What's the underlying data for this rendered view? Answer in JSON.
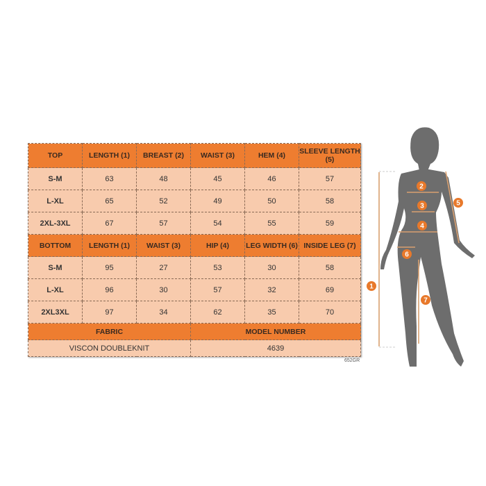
{
  "top": {
    "headers": [
      "TOP",
      "LENGTH (1)",
      "BREAST (2)",
      "WAIST (3)",
      "HEM (4)",
      "SLEEVE LENGTH (5)"
    ],
    "rows": [
      [
        "S-M",
        "63",
        "48",
        "45",
        "46",
        "57"
      ],
      [
        "L-XL",
        "65",
        "52",
        "49",
        "50",
        "58"
      ],
      [
        "2XL-3XL",
        "67",
        "57",
        "54",
        "55",
        "59"
      ]
    ]
  },
  "bottom": {
    "headers": [
      "BOTTOM",
      "LENGTH (1)",
      "WAIST (3)",
      "HIP (4)",
      "LEG WIDTH (6)",
      "INSIDE LEG (7)"
    ],
    "rows": [
      [
        "S-M",
        "95",
        "27",
        "53",
        "30",
        "58"
      ],
      [
        "L-XL",
        "96",
        "30",
        "57",
        "32",
        "69"
      ],
      [
        "2XL3XL",
        "97",
        "34",
        "62",
        "35",
        "70"
      ]
    ]
  },
  "footer": {
    "fabric_label": "FABRIC",
    "model_label": "MODEL NUMBER",
    "fabric_value": "VISCON DOUBLEKNIT",
    "model_value": "4639"
  },
  "code": "652GR",
  "figure": {
    "markers": [
      "1",
      "2",
      "3",
      "4",
      "5",
      "6",
      "7"
    ]
  },
  "colors": {
    "header": "#ee7d30",
    "cell": "#f8cbad",
    "silhouette": "#6d6d6d",
    "arrow": "#d9a070",
    "marker": "#e8792b"
  }
}
